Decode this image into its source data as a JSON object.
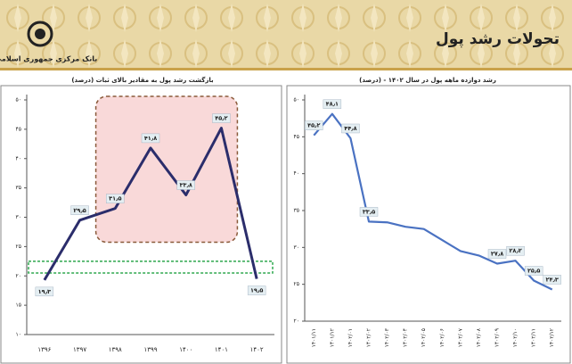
{
  "header": {
    "title": "تحولات رشد پول",
    "bank": "بانک مرکزی جمهوری اسلامی ایران"
  },
  "chart_data": [
    {
      "type": "line",
      "title": "بازگشت رشد پول به مقادیر بالای ثبات (درصد)",
      "categories": [
        "۱۳۹۶",
        "۱۳۹۷",
        "۱۳۹۸",
        "۱۳۹۹",
        "۱۴۰۰",
        "۱۴۰۱",
        "۱۴۰۲"
      ],
      "series": [
        {
          "color": "#2b2d6b",
          "values": [
            19.3,
            29.5,
            31.5,
            41.8,
            33.8,
            45.2,
            19.5
          ],
          "value_labels": [
            "۱۹٫۳",
            "۲۹٫۵",
            "۳۱٫۵",
            "۴۱٫۸",
            "۳۳٫۸",
            "۴۵٫۲",
            "۱۹٫۵"
          ]
        }
      ],
      "ylim": [
        10,
        50
      ],
      "yticks": [
        {
          "value": 10,
          "label": "۱۰"
        },
        {
          "value": 15,
          "label": "۱۵"
        },
        {
          "value": 20,
          "label": "۲۰"
        },
        {
          "value": 25,
          "label": "۲۵"
        },
        {
          "value": 30,
          "label": "۳۰"
        },
        {
          "value": 35,
          "label": "۳۵"
        },
        {
          "value": 40,
          "label": "۴۰"
        },
        {
          "value": 45,
          "label": "۴۵"
        },
        {
          "value": 50,
          "label": "۵۰"
        }
      ],
      "grid": false
    },
    {
      "type": "line",
      "title": "رشد دوازده ماهه پول در سال ۱۴۰۲ - (درصد)",
      "categories": [
        "۱۴۰۱/۱۱",
        "۱۴۰۱/۱۲",
        "۱۴۰۲/۰۱",
        "۱۴۰۲/۰۲",
        "۱۴۰۲/۰۳",
        "۱۴۰۲/۰۴",
        "۱۴۰۲/۰۵",
        "۱۴۰۲/۰۶",
        "۱۴۰۲/۰۷",
        "۱۴۰۲/۰۸",
        "۱۴۰۲/۰۹",
        "۱۴۰۲/۱۰",
        "۱۴۰۲/۱۱",
        "۱۴۰۲/۱۲"
      ],
      "series": [
        {
          "color": "#4a72c2",
          "values": [
            45.2,
            48.1,
            44.8,
            33.5,
            33.4,
            32.8,
            32.5,
            31.0,
            29.5,
            28.9,
            27.8,
            28.2,
            25.5,
            24.3
          ],
          "value_labels": [
            "۴۵٫۲",
            "۴۸٫۱",
            "۴۴٫۸",
            "۳۳٫۵",
            null,
            null,
            null,
            null,
            null,
            null,
            "۲۷٫۸",
            "۲۸٫۲",
            "۲۵٫۵",
            "۲۴٫۳"
          ]
        }
      ],
      "ylim": [
        20,
        50
      ],
      "yticks": [
        {
          "value": 20,
          "label": "۲۰"
        },
        {
          "value": 25,
          "label": "۲۵"
        },
        {
          "value": 30,
          "label": "۳۰"
        },
        {
          "value": 35,
          "label": "۳۵"
        },
        {
          "value": 40,
          "label": "۴۰"
        },
        {
          "value": 45,
          "label": "۴۵"
        },
        {
          "value": 50,
          "label": "۵۰"
        }
      ],
      "grid": false
    }
  ]
}
